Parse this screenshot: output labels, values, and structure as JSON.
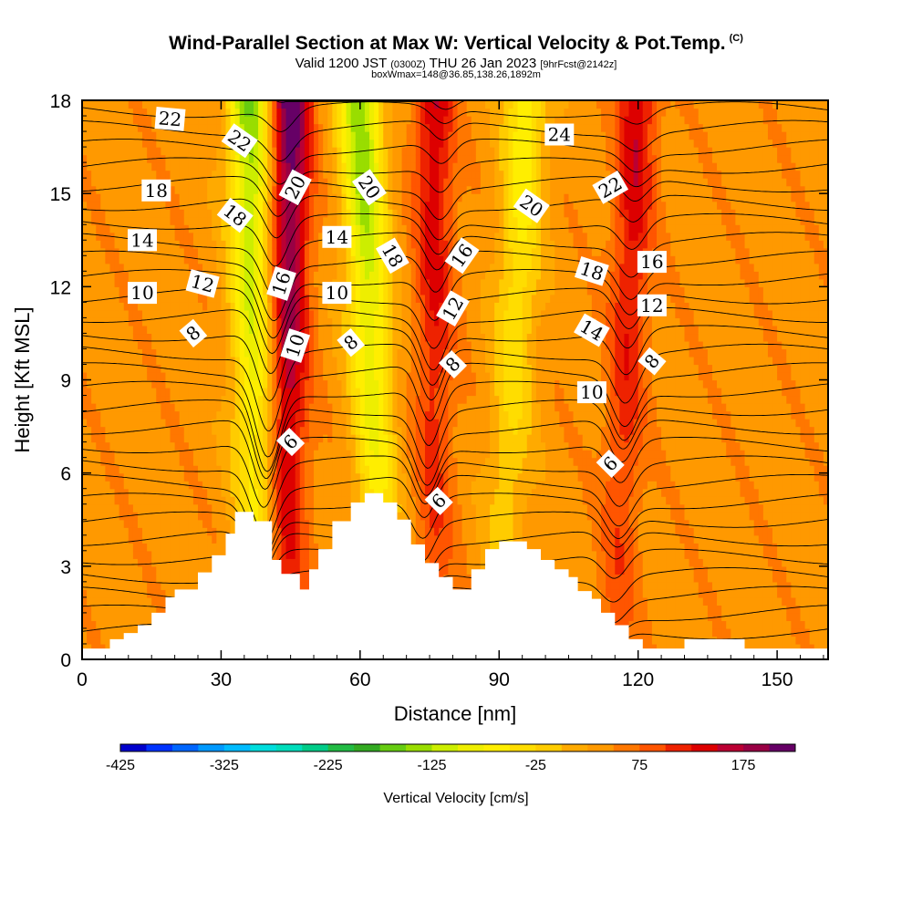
{
  "header": {
    "title": "Wind-Parallel Section at Max W: Vertical Velocity & Pot.Temp.",
    "title_mark": "(C)",
    "valid_prefix": "Valid 1200 JST",
    "valid_utc": "(0300Z)",
    "valid_date": "THU 26 Jan 2023",
    "valid_fcst": "[9hrFcst@2142z]",
    "box_info": "boxWmax=148@36.85,138.26,1892m"
  },
  "chart_data": {
    "type": "heatmap",
    "xlabel": "Distance [nm]",
    "ylabel": "Height [Kft MSL]",
    "xlim": [
      0,
      161
    ],
    "ylim": [
      0,
      18
    ],
    "xticks": [
      0,
      30,
      60,
      90,
      120,
      150
    ],
    "yticks": [
      0,
      3,
      6,
      9,
      12,
      15,
      18
    ],
    "colorbar": {
      "label": "Vertical Velocity [cm/s]",
      "tick_labels": [
        "-425",
        "-325",
        "-225",
        "-125",
        "-25",
        "75",
        "175"
      ],
      "tick_values": [
        -425,
        -325,
        -225,
        -125,
        -25,
        75,
        175
      ],
      "min": -425,
      "max": 225,
      "step": 25,
      "colors": [
        "#0000cc",
        "#0033ff",
        "#0066ff",
        "#0099ff",
        "#00bbff",
        "#00dddd",
        "#00ddbb",
        "#00cc88",
        "#22bb44",
        "#33aa22",
        "#66cc11",
        "#99dd00",
        "#ccee00",
        "#eeee00",
        "#ffee00",
        "#ffdd00",
        "#ffcc00",
        "#ffaa00",
        "#ff9900",
        "#ff7700",
        "#ff5500",
        "#ee2200",
        "#dd0000",
        "#bb0033",
        "#990044",
        "#660066"
      ]
    },
    "terrain_kft": [
      [
        0,
        0.35
      ],
      [
        6,
        0.35
      ],
      [
        6,
        0.65
      ],
      [
        9,
        0.65
      ],
      [
        9,
        0.85
      ],
      [
        12,
        0.85
      ],
      [
        12,
        1.1
      ],
      [
        15,
        1.1
      ],
      [
        15,
        1.5
      ],
      [
        18,
        1.5
      ],
      [
        18,
        2.0
      ],
      [
        20,
        2.0
      ],
      [
        20,
        2.25
      ],
      [
        25,
        2.25
      ],
      [
        25,
        2.8
      ],
      [
        28,
        2.8
      ],
      [
        28,
        3.35
      ],
      [
        31,
        3.35
      ],
      [
        31,
        4.05
      ],
      [
        33,
        4.05
      ],
      [
        33,
        4.75
      ],
      [
        37,
        4.75
      ],
      [
        37,
        4.45
      ],
      [
        41,
        4.45
      ],
      [
        41,
        3.2
      ],
      [
        43,
        3.2
      ],
      [
        43,
        2.75
      ],
      [
        47,
        2.75
      ],
      [
        47,
        2.25
      ],
      [
        49,
        2.25
      ],
      [
        49,
        2.9
      ],
      [
        51,
        2.9
      ],
      [
        51,
        3.55
      ],
      [
        54,
        3.55
      ],
      [
        54,
        4.45
      ],
      [
        58,
        4.45
      ],
      [
        58,
        5.05
      ],
      [
        61,
        5.05
      ],
      [
        61,
        5.35
      ],
      [
        65,
        5.35
      ],
      [
        65,
        5.05
      ],
      [
        68,
        5.05
      ],
      [
        68,
        4.5
      ],
      [
        71,
        4.5
      ],
      [
        71,
        3.7
      ],
      [
        74,
        3.7
      ],
      [
        74,
        3.1
      ],
      [
        77,
        3.1
      ],
      [
        77,
        2.65
      ],
      [
        80,
        2.65
      ],
      [
        80,
        2.25
      ],
      [
        84,
        2.25
      ],
      [
        84,
        2.9
      ],
      [
        87,
        2.9
      ],
      [
        87,
        3.55
      ],
      [
        90,
        3.55
      ],
      [
        90,
        3.8
      ],
      [
        96,
        3.8
      ],
      [
        96,
        3.55
      ],
      [
        99,
        3.55
      ],
      [
        99,
        3.2
      ],
      [
        102,
        3.2
      ],
      [
        102,
        2.9
      ],
      [
        105,
        2.9
      ],
      [
        105,
        2.65
      ],
      [
        107,
        2.65
      ],
      [
        107,
        2.2
      ],
      [
        110,
        2.2
      ],
      [
        110,
        1.95
      ],
      [
        112,
        1.95
      ],
      [
        112,
        1.5
      ],
      [
        115,
        1.5
      ],
      [
        115,
        1.1
      ],
      [
        118,
        1.1
      ],
      [
        118,
        0.65
      ],
      [
        121,
        0.65
      ],
      [
        121,
        0.35
      ],
      [
        130,
        0.35
      ],
      [
        130,
        0.65
      ],
      [
        143,
        0.65
      ],
      [
        143,
        0.35
      ],
      [
        161,
        0.35
      ]
    ],
    "updrafts": [
      {
        "x_base": 44,
        "x_top": 45,
        "peak_cms": 190
      },
      {
        "x_base": 76,
        "x_top": 76,
        "peak_cms": 110
      },
      {
        "x_base": 115,
        "x_top": 120,
        "peak_cms": 110
      }
    ],
    "downdrafts": [
      {
        "x_base": 38,
        "x_top": 36,
        "min_cms": -190
      },
      {
        "x_base": 65,
        "x_top": 60,
        "min_cms": -190
      },
      {
        "x_base": 90,
        "x_top": 96,
        "min_cms": -110
      }
    ],
    "contour_labels": [
      {
        "text": "22",
        "x": 19,
        "y": 17.4,
        "angle": 5
      },
      {
        "text": "22",
        "x": 34,
        "y": 16.7,
        "angle": 35
      },
      {
        "text": "18",
        "x": 16,
        "y": 15.1,
        "angle": 0
      },
      {
        "text": "18",
        "x": 33,
        "y": 14.3,
        "angle": 38
      },
      {
        "text": "20",
        "x": 46,
        "y": 15.2,
        "angle": -62
      },
      {
        "text": "20",
        "x": 62,
        "y": 15.2,
        "angle": 55
      },
      {
        "text": "14",
        "x": 13,
        "y": 13.5,
        "angle": 0
      },
      {
        "text": "14",
        "x": 55,
        "y": 13.6,
        "angle": 0
      },
      {
        "text": "18",
        "x": 67,
        "y": 13.0,
        "angle": 60
      },
      {
        "text": "16",
        "x": 82,
        "y": 13.0,
        "angle": -55
      },
      {
        "text": "20",
        "x": 97,
        "y": 14.6,
        "angle": 35
      },
      {
        "text": "24",
        "x": 103,
        "y": 16.9,
        "angle": 0
      },
      {
        "text": "22",
        "x": 114,
        "y": 15.2,
        "angle": -30
      },
      {
        "text": "12",
        "x": 26,
        "y": 12.1,
        "angle": 15
      },
      {
        "text": "16",
        "x": 43,
        "y": 12.1,
        "angle": -72
      },
      {
        "text": "10",
        "x": 55,
        "y": 11.8,
        "angle": 0
      },
      {
        "text": "10",
        "x": 13,
        "y": 11.8,
        "angle": 0
      },
      {
        "text": "12",
        "x": 80,
        "y": 11.3,
        "angle": -60
      },
      {
        "text": "18",
        "x": 110,
        "y": 12.5,
        "angle": 18
      },
      {
        "text": "16",
        "x": 123,
        "y": 12.8,
        "angle": 0
      },
      {
        "text": "12",
        "x": 123,
        "y": 11.4,
        "angle": 0
      },
      {
        "text": "14",
        "x": 110,
        "y": 10.6,
        "angle": 30
      },
      {
        "text": "8",
        "x": 24,
        "y": 10.5,
        "angle": -40
      },
      {
        "text": "10",
        "x": 46,
        "y": 10.1,
        "angle": -72
      },
      {
        "text": "8",
        "x": 58,
        "y": 10.2,
        "angle": -40
      },
      {
        "text": "8",
        "x": 80,
        "y": 9.5,
        "angle": -45
      },
      {
        "text": "8",
        "x": 123,
        "y": 9.6,
        "angle": -50
      },
      {
        "text": "10",
        "x": 110,
        "y": 8.6,
        "angle": 0
      },
      {
        "text": "6",
        "x": 45,
        "y": 7.0,
        "angle": -45
      },
      {
        "text": "6",
        "x": 77,
        "y": 5.1,
        "angle": -45
      },
      {
        "text": "6",
        "x": 114,
        "y": 6.3,
        "angle": -45
      }
    ]
  }
}
